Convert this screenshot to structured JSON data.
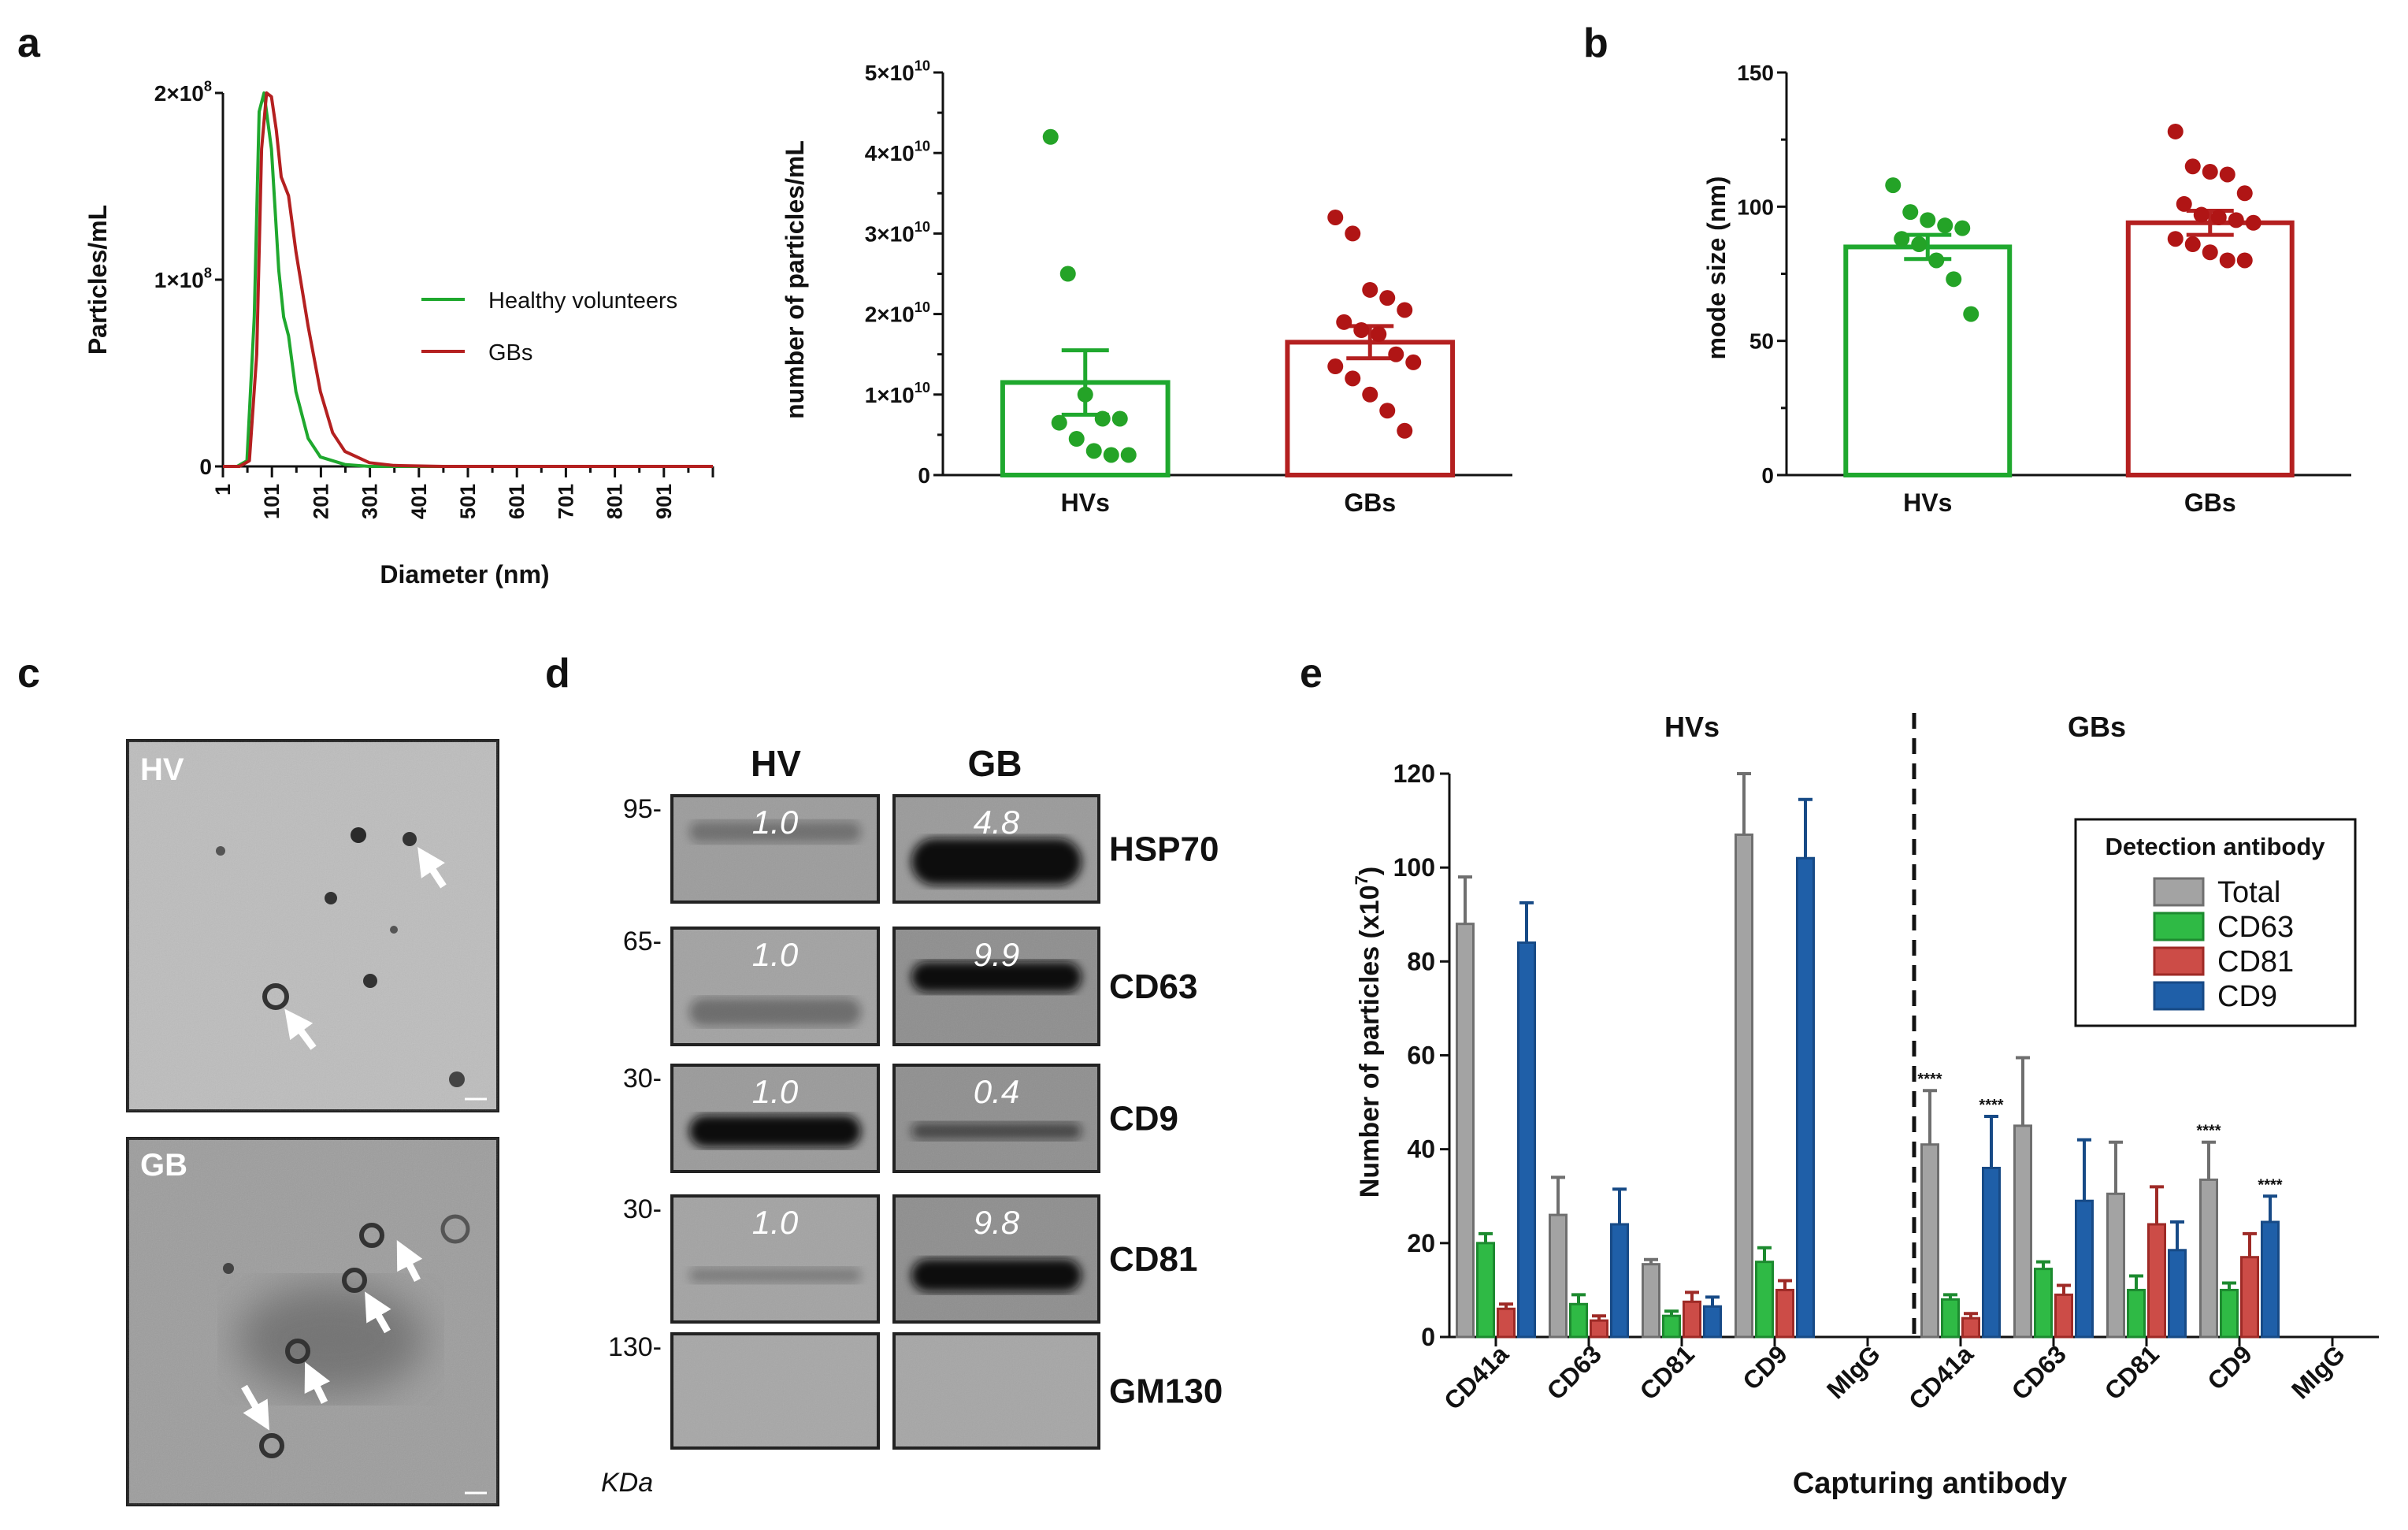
{
  "panels": {
    "a": "a",
    "b": "b",
    "c": "c",
    "d": "d",
    "e": "e"
  },
  "colors": {
    "hv": "#1fa82e",
    "gb": "#b42020",
    "total": "#a3a3a3",
    "cd63": "#2fba45",
    "cd81": "#cc4c47",
    "cd9": "#1f5fa8",
    "scatter_hv": "#24a327",
    "scatter_gb": "#b01515"
  },
  "chart_data": [
    {
      "id": "a_dist",
      "type": "line",
      "xlabel": "Diameter (nm)",
      "ylabel": "Particles/mL",
      "x_ticks": [
        "1",
        "101",
        "201",
        "301",
        "401",
        "501",
        "601",
        "701",
        "801",
        "901"
      ],
      "y_ticks": [
        "0",
        "1×10",
        "2×10"
      ],
      "y_tick_exp": "8",
      "xlim": [
        1,
        1001
      ],
      "ylim": [
        0,
        200000000
      ],
      "series": [
        {
          "name": "Healthy volunteers",
          "x": [
            1,
            30,
            50,
            65,
            75,
            85,
            100,
            115,
            125,
            135,
            150,
            175,
            200,
            250,
            300,
            400,
            500,
            700,
            1001
          ],
          "y": [
            0,
            0,
            3000000,
            80000000,
            190000000,
            200000000,
            170000000,
            105000000,
            80000000,
            70000000,
            40000000,
            15000000,
            5000000,
            1000000,
            0,
            0,
            0,
            0,
            0
          ]
        },
        {
          "name": "GBs",
          "x": [
            1,
            35,
            55,
            70,
            80,
            90,
            100,
            110,
            120,
            135,
            150,
            175,
            200,
            225,
            250,
            300,
            350,
            450,
            600,
            1001
          ],
          "y": [
            0,
            0,
            3000000,
            60000000,
            170000000,
            200000000,
            198000000,
            180000000,
            155000000,
            145000000,
            115000000,
            75000000,
            40000000,
            18000000,
            8000000,
            2000000,
            500000,
            0,
            0,
            0
          ]
        }
      ]
    },
    {
      "id": "a_bar",
      "type": "bar",
      "ylabel": "number of particles/mL",
      "categories": [
        "HVs",
        "GBs"
      ],
      "values": [
        11500000000,
        16500000000
      ],
      "error": [
        4000000000,
        2000000000
      ],
      "ylim": [
        0,
        50000000000
      ],
      "y_ticks": [
        "0",
        "1×10",
        "2×10",
        "3×10",
        "4×10",
        "5×10"
      ],
      "y_tick_exp": "10",
      "points": [
        [
          42000000000,
          25000000000,
          10000000000,
          7000000000,
          7000000000,
          6500000000,
          4500000000,
          3000000000,
          2500000000,
          2500000000
        ],
        [
          32000000000,
          30000000000,
          23000000000,
          22000000000,
          20500000000,
          19000000000,
          18000000000,
          17500000000,
          15000000000,
          14000000000,
          13500000000,
          12000000000,
          10000000000,
          8000000000,
          5500000000
        ]
      ]
    },
    {
      "id": "b",
      "type": "bar",
      "ylabel": "mode size (nm)",
      "categories": [
        "HVs",
        "GBs"
      ],
      "values": [
        85,
        94
      ],
      "error": [
        4.5,
        4.5
      ],
      "ylim": [
        0,
        150
      ],
      "y_ticks": [
        "0",
        "50",
        "100",
        "150"
      ],
      "points": [
        [
          108,
          98,
          95,
          93,
          92,
          88,
          86,
          80,
          73,
          60
        ],
        [
          128,
          115,
          113,
          112,
          105,
          101,
          97,
          96,
          95,
          94,
          88,
          86,
          83,
          80,
          80
        ]
      ]
    },
    {
      "id": "e",
      "type": "bar",
      "ylabel": "Number of particles (x10",
      "ylabel_exp": "7",
      "ylabel_end": ")",
      "xlabel": "Capturing antibody",
      "groups": [
        "HVs",
        "GBs"
      ],
      "categories": [
        "CD41a",
        "CD63",
        "CD81",
        "CD9",
        "MIgG",
        "CD41a",
        "CD63",
        "CD81",
        "CD9",
        "MIgG"
      ],
      "legend_title": "Detection antibody",
      "legend_position": "right",
      "ylim": [
        0,
        120
      ],
      "y_ticks": [
        "0",
        "20",
        "40",
        "60",
        "80",
        "100",
        "120"
      ],
      "series": [
        {
          "name": "Total",
          "values": [
            88,
            26,
            15.5,
            107,
            0,
            41,
            45,
            30.5,
            33.5,
            0
          ],
          "error": [
            10,
            8,
            1,
            13,
            0,
            11.5,
            14.5,
            11,
            8,
            0
          ]
        },
        {
          "name": "CD63",
          "values": [
            20,
            7,
            4.5,
            16,
            0,
            8,
            14.5,
            10,
            10,
            0
          ],
          "error": [
            2,
            2,
            1,
            3,
            0,
            1,
            1.5,
            3,
            1.5,
            0
          ]
        },
        {
          "name": "CD81",
          "values": [
            6,
            3.5,
            7.5,
            10,
            0,
            4,
            9,
            24,
            17,
            0
          ],
          "error": [
            1,
            1,
            2,
            2,
            0,
            1,
            2,
            8,
            5,
            0
          ]
        },
        {
          "name": "CD9",
          "values": [
            84,
            24,
            6.5,
            102,
            0,
            36,
            29,
            18.5,
            24.5,
            0
          ],
          "error": [
            8.5,
            7.5,
            2,
            12.5,
            0,
            11,
            13,
            6,
            5.5,
            0
          ]
        }
      ],
      "significance": {
        "marker": "****",
        "at": [
          {
            "category": 5,
            "series": 0
          },
          {
            "category": 5,
            "series": 3
          },
          {
            "category": 8,
            "series": 0
          },
          {
            "category": 8,
            "series": 3
          }
        ]
      }
    }
  ],
  "legend_a": [
    "Healthy volunteers",
    "GBs"
  ],
  "micrographs": [
    {
      "label": "HV"
    },
    {
      "label": "GB"
    }
  ],
  "western": {
    "columns": [
      "HV",
      "GB"
    ],
    "unit": "KDa",
    "rows": [
      {
        "kda": "95",
        "protein": "HSP70",
        "hv": "1.0",
        "gb": "4.8"
      },
      {
        "kda": "65",
        "protein": "CD63",
        "hv": "1.0",
        "gb": "9.9"
      },
      {
        "kda": "30",
        "protein": "CD9",
        "hv": "1.0",
        "gb": "0.4"
      },
      {
        "kda": "30",
        "protein": "CD81",
        "hv": "1.0",
        "gb": "9.8"
      },
      {
        "kda": "130",
        "protein": "GM130",
        "hv": "",
        "gb": ""
      }
    ]
  }
}
